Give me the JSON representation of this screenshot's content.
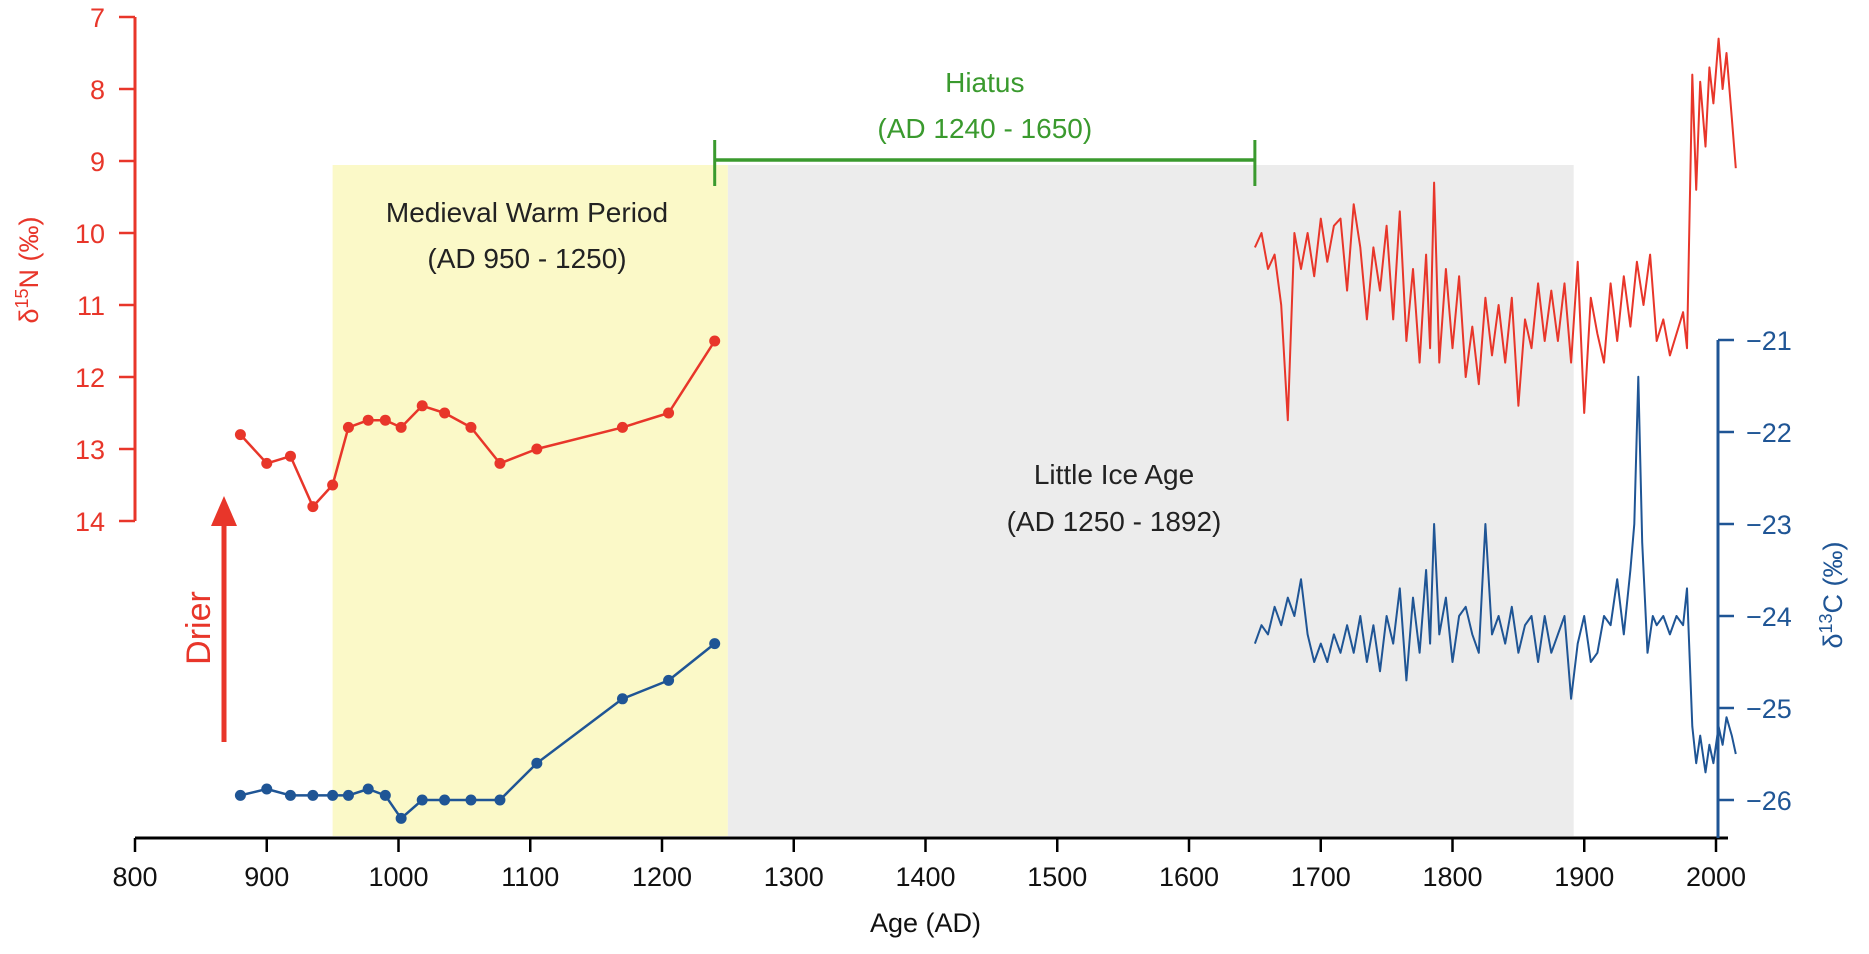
{
  "chart_data": {
    "type": "line",
    "xlabel": "Age (AD)",
    "xlim": [
      800,
      2020
    ],
    "x_ticks": [
      800,
      900,
      1000,
      1100,
      1200,
      1300,
      1400,
      1500,
      1600,
      1700,
      1800,
      1900,
      2000
    ],
    "y_left": {
      "label_prefix": "δ",
      "label_sup": "15",
      "label_suffix": "N (‰)",
      "inverted": true,
      "range": [
        7,
        14
      ],
      "ticks": [
        7,
        8,
        9,
        10,
        11,
        12,
        13,
        14
      ],
      "color": "#e8362a"
    },
    "y_right": {
      "label_prefix": "δ",
      "label_sup": "13",
      "label_suffix": "C (‰)",
      "range": [
        -26.5,
        -21
      ],
      "ticks": [
        -21,
        -22,
        -23,
        -24,
        -25,
        -26
      ],
      "tick_labels": [
        "−21",
        "−22",
        "−23",
        "−24",
        "−25",
        "−26"
      ],
      "color": "#1f5595"
    },
    "periods": [
      {
        "label": "Medieval Warm Period",
        "range_label": "(AD 950 - 1250)",
        "start": 950,
        "end": 1250,
        "color": "#fbf9c8"
      },
      {
        "label": "Little Ice Age",
        "range_label": "(AD 1250 - 1892)",
        "start": 1250,
        "end": 1892,
        "color": "#ececec"
      }
    ],
    "hiatus": {
      "label": "Hiatus",
      "range_label": "(AD 1240 - 1650)",
      "start": 1240,
      "end": 1650,
      "color": "#3a9a2e"
    },
    "arrow_label": "Drier",
    "arrow_color": "#e8362a",
    "series": [
      {
        "axis": "left",
        "style": "points",
        "color": "#e8362a",
        "x": [
          880,
          900,
          918,
          935,
          950,
          962,
          977,
          990,
          1002,
          1018,
          1035,
          1055,
          1077,
          1105,
          1170,
          1205,
          1240
        ],
        "y": [
          12.8,
          13.2,
          13.1,
          13.8,
          13.5,
          12.7,
          12.6,
          12.6,
          12.7,
          12.4,
          12.5,
          12.7,
          13.2,
          13.0,
          12.7,
          12.5,
          11.5
        ]
      },
      {
        "axis": "left",
        "style": "line",
        "color": "#e8362a",
        "x": [
          1650,
          1655,
          1660,
          1665,
          1670,
          1675,
          1680,
          1685,
          1690,
          1695,
          1700,
          1705,
          1710,
          1715,
          1720,
          1725,
          1730,
          1735,
          1740,
          1745,
          1750,
          1755,
          1760,
          1765,
          1770,
          1775,
          1780,
          1783,
          1786,
          1790,
          1795,
          1800,
          1805,
          1810,
          1815,
          1820,
          1825,
          1830,
          1835,
          1840,
          1845,
          1850,
          1855,
          1860,
          1865,
          1870,
          1875,
          1880,
          1885,
          1890,
          1895,
          1900,
          1905,
          1910,
          1915,
          1920,
          1925,
          1930,
          1935,
          1940,
          1945,
          1950,
          1955,
          1960,
          1965,
          1970,
          1975,
          1978,
          1982,
          1985,
          1988,
          1992,
          1995,
          1998,
          2002,
          2005,
          2008,
          2012,
          2015
        ],
        "y": [
          10.2,
          10.0,
          10.5,
          10.3,
          11.0,
          12.6,
          10.0,
          10.5,
          10.0,
          10.6,
          9.8,
          10.4,
          9.9,
          9.8,
          10.8,
          9.6,
          10.2,
          11.2,
          10.2,
          10.8,
          9.9,
          11.2,
          9.7,
          11.5,
          10.5,
          11.8,
          10.3,
          11.6,
          9.3,
          11.8,
          10.5,
          11.6,
          10.6,
          12.0,
          11.3,
          12.1,
          10.9,
          11.7,
          11.0,
          11.8,
          10.9,
          12.4,
          11.2,
          11.6,
          10.7,
          11.5,
          10.8,
          11.5,
          10.7,
          11.8,
          10.4,
          12.5,
          10.9,
          11.4,
          11.8,
          10.7,
          11.5,
          10.6,
          11.3,
          10.4,
          11.0,
          10.3,
          11.5,
          11.2,
          11.7,
          11.4,
          11.1,
          11.6,
          7.8,
          9.4,
          7.9,
          8.8,
          7.7,
          8.2,
          7.3,
          8.0,
          7.5,
          8.4,
          9.1
        ]
      },
      {
        "axis": "right",
        "style": "points",
        "color": "#1f5595",
        "x": [
          880,
          900,
          918,
          935,
          950,
          962,
          977,
          990,
          1002,
          1018,
          1035,
          1055,
          1077,
          1105,
          1170,
          1205,
          1240
        ],
        "y": [
          -25.95,
          -25.88,
          -25.95,
          -25.95,
          -25.95,
          -25.95,
          -25.88,
          -25.95,
          -26.2,
          -26.0,
          -26.0,
          -26.0,
          -26.0,
          -25.6,
          -24.9,
          -24.7,
          -24.3
        ]
      },
      {
        "axis": "right",
        "style": "line",
        "color": "#1f5595",
        "x": [
          1650,
          1655,
          1660,
          1665,
          1670,
          1675,
          1680,
          1685,
          1690,
          1695,
          1700,
          1705,
          1710,
          1715,
          1720,
          1725,
          1730,
          1735,
          1740,
          1745,
          1750,
          1755,
          1760,
          1765,
          1770,
          1775,
          1780,
          1783,
          1786,
          1790,
          1795,
          1800,
          1805,
          1810,
          1815,
          1820,
          1825,
          1830,
          1835,
          1840,
          1845,
          1850,
          1855,
          1860,
          1865,
          1870,
          1875,
          1880,
          1885,
          1890,
          1895,
          1900,
          1905,
          1910,
          1915,
          1920,
          1925,
          1930,
          1935,
          1938,
          1941,
          1944,
          1948,
          1952,
          1955,
          1960,
          1965,
          1970,
          1975,
          1978,
          1982,
          1985,
          1988,
          1992,
          1995,
          1998,
          2002,
          2005,
          2008,
          2012,
          2015
        ],
        "y": [
          -24.3,
          -24.1,
          -24.2,
          -23.9,
          -24.1,
          -23.8,
          -24.0,
          -23.6,
          -24.2,
          -24.5,
          -24.3,
          -24.5,
          -24.2,
          -24.4,
          -24.1,
          -24.4,
          -24.0,
          -24.5,
          -24.1,
          -24.6,
          -24.0,
          -24.3,
          -23.7,
          -24.7,
          -23.8,
          -24.4,
          -23.5,
          -24.3,
          -23.0,
          -24.2,
          -23.8,
          -24.5,
          -24.0,
          -23.9,
          -24.2,
          -24.4,
          -23.0,
          -24.2,
          -24.0,
          -24.3,
          -23.9,
          -24.4,
          -24.1,
          -24.0,
          -24.5,
          -24.0,
          -24.4,
          -24.2,
          -24.0,
          -24.9,
          -24.3,
          -24.0,
          -24.5,
          -24.4,
          -24.0,
          -24.1,
          -23.6,
          -24.2,
          -23.5,
          -23.0,
          -21.4,
          -23.2,
          -24.4,
          -24.0,
          -24.1,
          -24.0,
          -24.2,
          -24.0,
          -24.1,
          -23.7,
          -25.2,
          -25.6,
          -25.3,
          -25.7,
          -25.4,
          -25.6,
          -25.2,
          -25.4,
          -25.1,
          -25.3,
          -25.5
        ]
      }
    ]
  }
}
